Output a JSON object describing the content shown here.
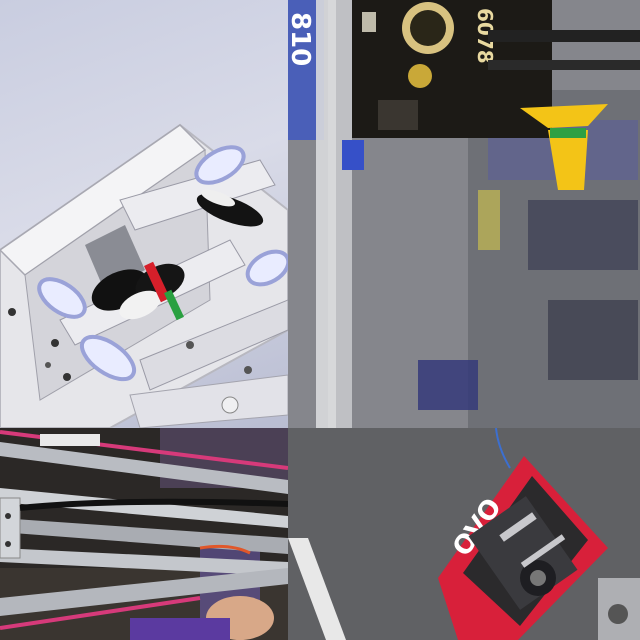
{
  "panels": [
    {
      "id": "cad-render"
    },
    {
      "id": "robot-on-field"
    },
    {
      "id": "robot-frame-closeup"
    },
    {
      "id": "robot-on-carpet"
    }
  ],
  "robot_on_field": {
    "team_number": "6078",
    "banner_text": "810"
  },
  "robot_on_carpet": {
    "bumper_text": "OVO"
  },
  "colors": {
    "bumper_red": "#d8203a",
    "cone_yellow": "#f3c417",
    "robot_black": "#1c1a16",
    "banner_blue": "#4a5fb8"
  }
}
